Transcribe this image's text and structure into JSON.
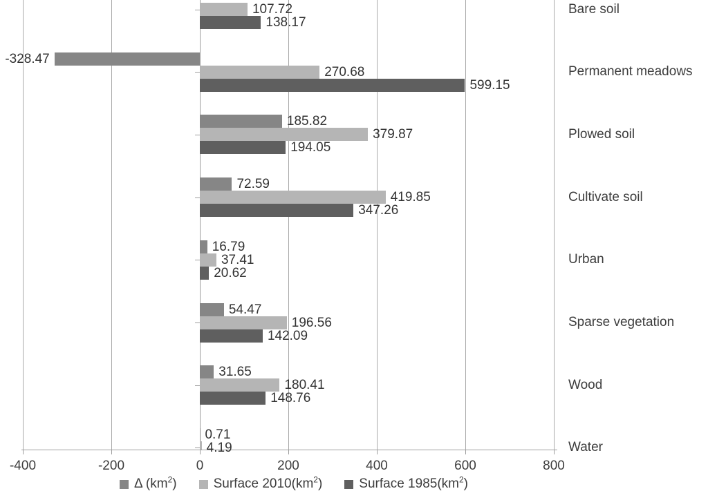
{
  "chart_data": {
    "type": "bar",
    "orientation": "horizontal-grouped",
    "title": "",
    "categories": [
      "Bare soil",
      "Permanent meadows",
      "Plowed soil",
      "Cultivate soil",
      "Urban",
      "Sparse vegetation",
      "Wood",
      "Water"
    ],
    "series": [
      {
        "label_prefix": "Δ (km",
        "label_sup": "2",
        "label_suffix": ")",
        "color": "#868686",
        "values": [
          null,
          -328.47,
          185.82,
          72.59,
          16.79,
          54.47,
          31.65,
          0.71
        ]
      },
      {
        "label_prefix": "Surface 2010(km",
        "label_sup": "2",
        "label_suffix": ")",
        "color": "#b5b5b5",
        "values": [
          107.72,
          270.68,
          379.87,
          419.85,
          37.41,
          196.56,
          180.41,
          4.19
        ]
      },
      {
        "label_prefix": "Surface 1985(km",
        "label_sup": "2",
        "label_suffix": ")",
        "color": "#5f5f5f",
        "values": [
          138.17,
          599.15,
          194.05,
          347.26,
          20.62,
          142.09,
          148.76,
          null
        ]
      }
    ],
    "x_ticks": [
      -400,
      -200,
      0,
      200,
      400,
      600,
      800
    ],
    "xlim": [
      -400,
      800
    ],
    "value_label_decimals": 2,
    "grid": "vertical-on",
    "legend_position": "bottom",
    "category_axis_side": "right",
    "colors": {
      "grid": "#a8a8a8",
      "axis": "#9c9c9c",
      "text": "#3d3d3d"
    }
  }
}
